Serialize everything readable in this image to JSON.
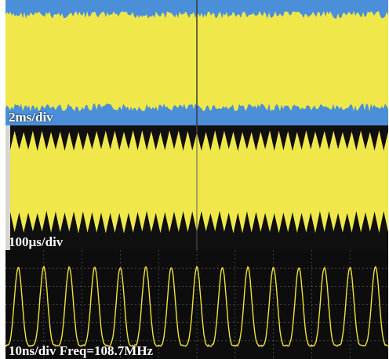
{
  "colors": {
    "trace": "#f0e84a",
    "trace_line": "#efe23c",
    "panel1_background": "#4a8fd8",
    "panel2_background": "#101010",
    "panel3_background": "#0d0d0d",
    "grid": "#6a6a6a"
  },
  "chart_data": [
    {
      "type": "line",
      "title": "2ms/div",
      "timebase": "2ms/div",
      "signal": "dense carrier envelope",
      "grid": true
    },
    {
      "type": "line",
      "title": "100µs/div",
      "timebase": "100µs/div",
      "signal": "envelope with periodic peaks",
      "peaks_across_screen": 42,
      "grid": true
    },
    {
      "type": "line",
      "title": "10ns/div  Freq=108.7MHz",
      "timebase": "10ns/div",
      "frequency_label": "Freq=108.7MHz",
      "frequency_mhz": 108.7,
      "cycles_across_screen": 15,
      "grid": true
    }
  ]
}
